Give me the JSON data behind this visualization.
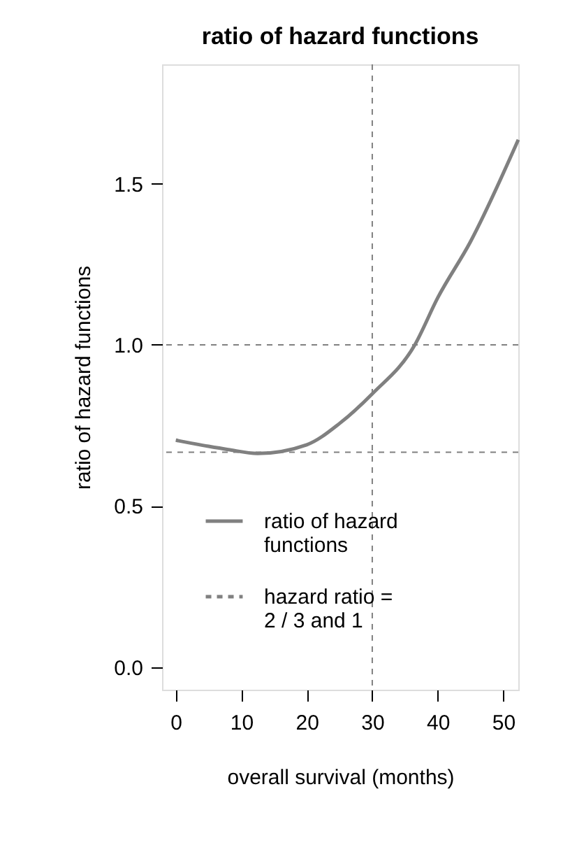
{
  "chart_data": {
    "type": "line",
    "title": "ratio of hazard functions",
    "xlabel": "overall survival (months)",
    "ylabel": "ratio of hazard functions",
    "x": [
      0,
      5,
      8,
      12.5,
      20,
      25,
      30,
      36.5,
      40,
      45,
      52.3
    ],
    "series": [
      {
        "name": "ratio of hazard functions",
        "color": "#808080",
        "line_style": "solid",
        "values": [
          0.704,
          0.685,
          0.675,
          0.663,
          0.69,
          0.756,
          0.848,
          1.0,
          1.146,
          1.32,
          1.636
        ]
      }
    ],
    "ref_lines": [
      {
        "axis": "y",
        "value": 0.6667,
        "label": "hazard ratio = 2 / 3 and 1",
        "color": "#808080",
        "line_style": "dashed"
      },
      {
        "axis": "y",
        "value": 1,
        "color": "#808080",
        "line_style": "dashed"
      },
      {
        "axis": "x",
        "value": 30,
        "color": "#808080",
        "line_style": "dashed"
      }
    ],
    "xlim": [
      -2.1,
      52.3
    ],
    "ylim": [
      -0.07,
      1.87
    ],
    "xticks": [
      0,
      10,
      20,
      30,
      40,
      50
    ],
    "yticks": [
      {
        "value": 0,
        "label": "0.0"
      },
      0.5,
      {
        "value": 1,
        "label": "1.0"
      },
      1.5
    ],
    "grid": false,
    "legend": "bottom",
    "marker": "none"
  }
}
